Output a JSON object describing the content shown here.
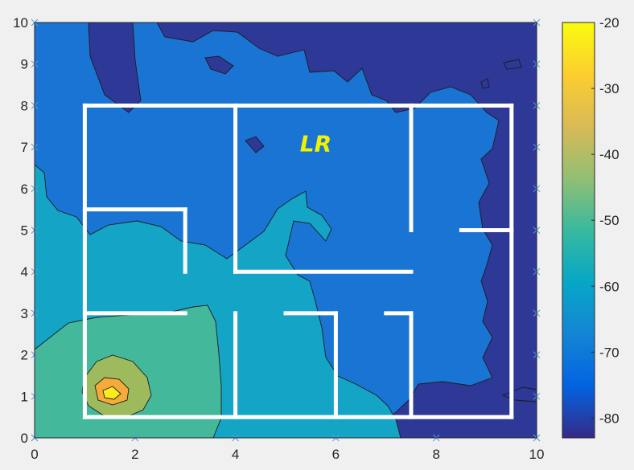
{
  "chart_data": {
    "type": "heatmap",
    "subtype": "filled-contour",
    "title": "",
    "xlabel": "",
    "ylabel": "",
    "xlim": [
      0,
      10
    ],
    "ylim": [
      0,
      10
    ],
    "x_ticks": [
      0,
      2,
      4,
      6,
      8,
      10
    ],
    "y_ticks": [
      0,
      1,
      2,
      3,
      4,
      5,
      6,
      7,
      8,
      9,
      10
    ],
    "colorbar": {
      "range": [
        -83,
        -20
      ],
      "ticks": [
        -20,
        -30,
        -40,
        -50,
        -60,
        -70,
        -80
      ],
      "colormap": "parula",
      "position": "right"
    },
    "contour_levels": [
      -75,
      -65,
      -55,
      -45,
      -35,
      -25
    ],
    "level_colors": [
      "#2e3896",
      "#1a74d4",
      "#14a5c6",
      "#43b89a",
      "#9dbb5c",
      "#f5aa3c",
      "#f7ec1c"
    ],
    "samples": [
      {
        "x": 0,
        "y": 10,
        "value": -76
      },
      {
        "x": 2,
        "y": 10,
        "value": -70
      },
      {
        "x": 4,
        "y": 10,
        "value": -72
      },
      {
        "x": 6,
        "y": 10,
        "value": -70
      },
      {
        "x": 8,
        "y": 10,
        "value": -76
      },
      {
        "x": 10,
        "y": 10,
        "value": -77
      },
      {
        "x": 1,
        "y": 8,
        "value": -70
      },
      {
        "x": 3,
        "y": 6,
        "value": -70
      },
      {
        "x": 5,
        "y": 7,
        "value": -70
      },
      {
        "x": 8,
        "y": 7,
        "value": -76
      },
      {
        "x": 10,
        "y": 5,
        "value": -77
      },
      {
        "x": 0,
        "y": 6,
        "value": -58
      },
      {
        "x": 5.5,
        "y": 5.5,
        "value": -62
      },
      {
        "x": 2,
        "y": 4,
        "value": -60
      },
      {
        "x": 5,
        "y": 3,
        "value": -62
      },
      {
        "x": 7,
        "y": 3,
        "value": -68
      },
      {
        "x": 9,
        "y": 2,
        "value": -76
      },
      {
        "x": 0,
        "y": 1,
        "value": -52
      },
      {
        "x": 2,
        "y": 2,
        "value": -50
      },
      {
        "x": 1.3,
        "y": 1.0,
        "value": -45
      },
      {
        "x": 1.5,
        "y": 1.2,
        "value": -32
      },
      {
        "x": 1.55,
        "y": 1.1,
        "value": -21
      }
    ],
    "annotations": [
      {
        "text": "LR",
        "x": 5.6,
        "y": 6.9,
        "color": "#f2f200"
      }
    ],
    "overlay": {
      "name": "floor-plan-walls",
      "color": "#ffffff",
      "segments": [
        [
          [
            1,
            0.5
          ],
          [
            9.5,
            0.5
          ]
        ],
        [
          [
            1,
            8
          ],
          [
            9.5,
            8
          ]
        ],
        [
          [
            1,
            0.5
          ],
          [
            1,
            8
          ]
        ],
        [
          [
            9.5,
            0.5
          ],
          [
            9.5,
            8
          ]
        ],
        [
          [
            4,
            4
          ],
          [
            4,
            8
          ]
        ],
        [
          [
            4,
            0.5
          ],
          [
            4,
            3
          ]
        ],
        [
          [
            7.5,
            5
          ],
          [
            7.5,
            8
          ]
        ],
        [
          [
            7.5,
            0.5
          ],
          [
            7.5,
            3
          ]
        ],
        [
          [
            4,
            4
          ],
          [
            7.5,
            4
          ]
        ],
        [
          [
            1,
            5.5
          ],
          [
            3,
            5.5
          ]
        ],
        [
          [
            3,
            4
          ],
          [
            3,
            5.5
          ]
        ],
        [
          [
            1,
            3
          ],
          [
            3,
            3
          ]
        ],
        [
          [
            5,
            3
          ],
          [
            6,
            3
          ]
        ],
        [
          [
            6,
            0.5
          ],
          [
            6,
            3
          ]
        ],
        [
          [
            7,
            3
          ],
          [
            7.5,
            3
          ]
        ],
        [
          [
            8.5,
            5
          ],
          [
            9.5,
            5
          ]
        ]
      ]
    }
  }
}
